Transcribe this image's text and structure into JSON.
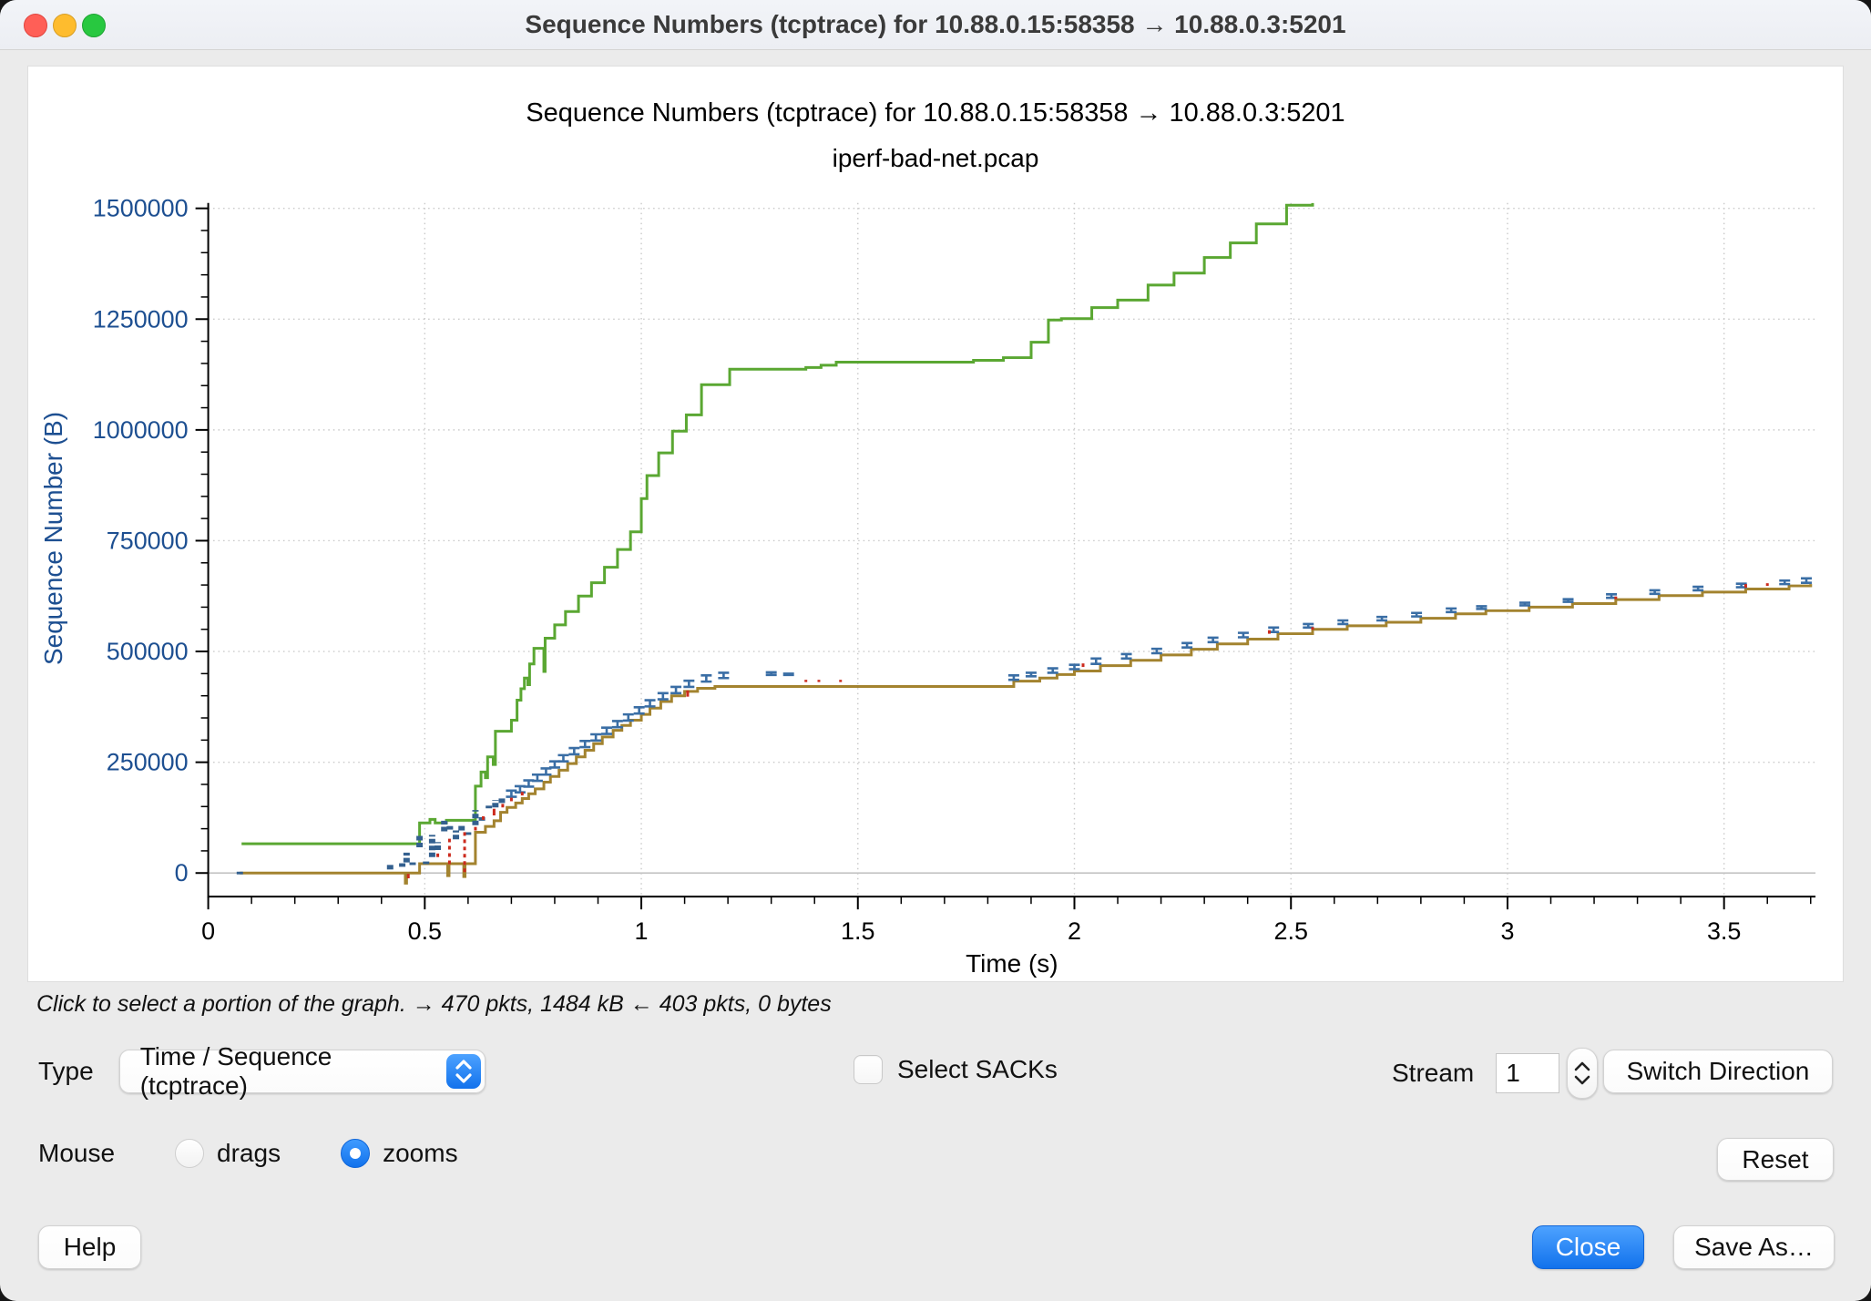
{
  "window": {
    "title": "Sequence Numbers (tcptrace) for 10.88.0.15:58358 → 10.88.0.3:5201"
  },
  "status_line": "Click to select a portion of the graph. → 470 pkts, 1484 kB ← 403 pkts, 0 bytes",
  "controls": {
    "type_label": "Type",
    "type_value": "Time / Sequence (tcptrace)",
    "sacks_label": "Select SACKs",
    "sacks_checked": false,
    "stream_label": "Stream",
    "stream_value": "1",
    "switch_direction_label": "Switch Direction",
    "mouse_label": "Mouse",
    "drags_label": "drags",
    "zooms_label": "zooms",
    "mouse_selected": "zooms",
    "reset_label": "Reset",
    "help_label": "Help",
    "close_label": "Close",
    "save_as_label": "Save As…"
  },
  "chart_data": {
    "type": "line",
    "title": "Sequence Numbers (tcptrace) for 10.88.0.15:58358 → 10.88.0.3:5201",
    "subtitle": "iperf-bad-net.pcap",
    "xlabel": "Time (s)",
    "ylabel": "Sequence Number (B)",
    "xlim": [
      0,
      3.7
    ],
    "ylim": [
      0,
      1512000
    ],
    "grid": true,
    "x_ticks": [
      0,
      0.5,
      1,
      1.5,
      2,
      2.5,
      3,
      3.5
    ],
    "x_tick_labels": [
      "0",
      "0.5",
      "1",
      "1.5",
      "2",
      "2.5",
      "3",
      "3.5"
    ],
    "x_minor_step": 0.1,
    "y_ticks": [
      0,
      250000,
      500000,
      750000,
      1000000,
      1250000,
      1500000
    ],
    "y_tick_labels": [
      "0",
      "250000",
      "500000",
      "750000",
      "1000000",
      "1250000",
      "1500000"
    ],
    "y_minor_step": 50000,
    "colors": {
      "rwnd_green": "#5aa732",
      "ack_brown": "#a3832f",
      "segment_blue": "#3a6ea5",
      "burst_blue": "#33608f",
      "sack_red": "#cc2a1d",
      "tick_label_blue": "#1d4f91",
      "grid_gray": "#c9c9c9",
      "zero_line_gray": "#b8b8b8"
    },
    "series": [
      {
        "name": "receive-window-green",
        "type": "step",
        "color": "#5aa732",
        "points": [
          [
            0.077,
            66000
          ],
          [
            0.488,
            113000
          ],
          [
            0.512,
            121000
          ],
          [
            0.524,
            113000
          ],
          [
            0.55,
            119000
          ],
          [
            0.617,
            196000
          ],
          [
            0.63,
            228000
          ],
          [
            0.64,
            215000
          ],
          [
            0.645,
            262000
          ],
          [
            0.658,
            245000
          ],
          [
            0.663,
            320000
          ],
          [
            0.7,
            345000
          ],
          [
            0.713,
            390000
          ],
          [
            0.722,
            416000
          ],
          [
            0.73,
            440000
          ],
          [
            0.738,
            425000
          ],
          [
            0.742,
            472000
          ],
          [
            0.752,
            507000
          ],
          [
            0.775,
            455000
          ],
          [
            0.778,
            530000
          ],
          [
            0.8,
            560000
          ],
          [
            0.825,
            590000
          ],
          [
            0.855,
            625000
          ],
          [
            0.885,
            655000
          ],
          [
            0.915,
            690000
          ],
          [
            0.945,
            730000
          ],
          [
            0.975,
            770000
          ],
          [
            1.0,
            845000
          ],
          [
            1.013,
            897000
          ],
          [
            1.04,
            948000
          ],
          [
            1.072,
            997000
          ],
          [
            1.104,
            1034000
          ],
          [
            1.139,
            1102000
          ],
          [
            1.204,
            1137000
          ],
          [
            1.38,
            1141000
          ],
          [
            1.415,
            1146000
          ],
          [
            1.45,
            1153000
          ],
          [
            1.767,
            1157000
          ],
          [
            1.836,
            1163000
          ],
          [
            1.9,
            1198000
          ],
          [
            1.94,
            1248000
          ],
          [
            1.97,
            1251000
          ],
          [
            2.04,
            1276000
          ],
          [
            2.1,
            1293000
          ],
          [
            2.17,
            1327000
          ],
          [
            2.23,
            1354000
          ],
          [
            2.3,
            1389000
          ],
          [
            2.36,
            1422000
          ],
          [
            2.42,
            1465000
          ],
          [
            2.49,
            1507000
          ],
          [
            2.55,
            1512000
          ]
        ]
      },
      {
        "name": "ack-line-brown",
        "type": "step",
        "color": "#a3832f",
        "points": [
          [
            0.073,
            0
          ],
          [
            0.455,
            -23000
          ],
          [
            0.458,
            0
          ],
          [
            0.488,
            21000
          ],
          [
            0.553,
            -6000
          ],
          [
            0.556,
            21000
          ],
          [
            0.59,
            -8000
          ],
          [
            0.593,
            21000
          ],
          [
            0.617,
            92000
          ],
          [
            0.64,
            105000
          ],
          [
            0.66,
            118000
          ],
          [
            0.675,
            137000
          ],
          [
            0.69,
            148000
          ],
          [
            0.71,
            158000
          ],
          [
            0.725,
            168000
          ],
          [
            0.74,
            179000
          ],
          [
            0.755,
            190000
          ],
          [
            0.775,
            205000
          ],
          [
            0.79,
            218000
          ],
          [
            0.81,
            232000
          ],
          [
            0.83,
            247000
          ],
          [
            0.85,
            262000
          ],
          [
            0.87,
            277000
          ],
          [
            0.89,
            292000
          ],
          [
            0.91,
            307000
          ],
          [
            0.935,
            322000
          ],
          [
            0.955,
            333000
          ],
          [
            0.975,
            345000
          ],
          [
            1.0,
            358000
          ],
          [
            1.02,
            372000
          ],
          [
            1.045,
            387000
          ],
          [
            1.07,
            400000
          ],
          [
            1.1,
            410000
          ],
          [
            1.13,
            417000
          ],
          [
            1.17,
            421000
          ],
          [
            1.86,
            433000
          ],
          [
            1.92,
            440000
          ],
          [
            1.96,
            448000
          ],
          [
            2.0,
            456000
          ],
          [
            2.06,
            468000
          ],
          [
            2.13,
            480000
          ],
          [
            2.2,
            492000
          ],
          [
            2.27,
            505000
          ],
          [
            2.33,
            517000
          ],
          [
            2.4,
            528000
          ],
          [
            2.47,
            540000
          ],
          [
            2.55,
            550000
          ],
          [
            2.63,
            558000
          ],
          [
            2.72,
            566000
          ],
          [
            2.8,
            575000
          ],
          [
            2.88,
            585000
          ],
          [
            2.95,
            592000
          ],
          [
            3.05,
            600000
          ],
          [
            3.15,
            608000
          ],
          [
            3.25,
            617000
          ],
          [
            3.35,
            626000
          ],
          [
            3.45,
            634000
          ],
          [
            3.55,
            641000
          ],
          [
            3.65,
            648000
          ],
          [
            3.7,
            652000
          ]
        ]
      },
      {
        "name": "segment-bursts-blue",
        "type": "thickbar",
        "color": "#33608f",
        "bars": [
          [
            0.073,
            -3000,
            3000
          ],
          [
            0.42,
            8000,
            20000
          ],
          [
            0.448,
            14000,
            22000
          ],
          [
            0.458,
            24000,
            46000
          ],
          [
            0.472,
            18000,
            24000
          ],
          [
            0.488,
            58000,
            88000
          ],
          [
            0.503,
            20000,
            26000
          ],
          [
            0.517,
            36000,
            86000
          ],
          [
            0.53,
            52000,
            70000
          ],
          [
            0.545,
            94000,
            118000
          ],
          [
            0.558,
            98000,
            106000
          ],
          [
            0.572,
            76000,
            96000
          ],
          [
            0.585,
            96000,
            108000
          ],
          [
            0.6,
            86000,
            92000
          ],
          [
            0.617,
            108000,
            142000
          ],
          [
            0.632,
            118000,
            126000
          ],
          [
            0.648,
            146000,
            152000
          ],
          [
            0.663,
            148000,
            165000
          ],
          [
            0.678,
            158000,
            170000
          ]
        ]
      },
      {
        "name": "data-segments-blue",
        "type": "ibar",
        "color": "#3a6ea5",
        "bars": [
          [
            0.7,
            172000,
            186000
          ],
          [
            0.72,
            182000,
            196000
          ],
          [
            0.74,
            195000,
            209000
          ],
          [
            0.76,
            208000,
            222000
          ],
          [
            0.78,
            222000,
            236000
          ],
          [
            0.8,
            238000,
            252000
          ],
          [
            0.82,
            252000,
            266000
          ],
          [
            0.845,
            268000,
            282000
          ],
          [
            0.87,
            284000,
            298000
          ],
          [
            0.895,
            299000,
            313000
          ],
          [
            0.92,
            314000,
            328000
          ],
          [
            0.945,
            329000,
            343000
          ],
          [
            0.97,
            344000,
            358000
          ],
          [
            0.995,
            360000,
            374000
          ],
          [
            1.02,
            376000,
            390000
          ],
          [
            1.05,
            392000,
            406000
          ],
          [
            1.08,
            406000,
            420000
          ],
          [
            1.11,
            420000,
            434000
          ],
          [
            1.15,
            432000,
            446000
          ],
          [
            1.19,
            440000,
            452000
          ],
          [
            1.3,
            447000,
            453000
          ],
          [
            1.34,
            447000,
            450000
          ],
          [
            1.86,
            436000,
            446000
          ],
          [
            1.9,
            444000,
            452000
          ],
          [
            1.95,
            452000,
            462000
          ],
          [
            2.0,
            460000,
            470000
          ],
          [
            2.05,
            472000,
            484000
          ],
          [
            2.12,
            484000,
            494000
          ],
          [
            2.19,
            496000,
            506000
          ],
          [
            2.26,
            509000,
            519000
          ],
          [
            2.32,
            521000,
            531000
          ],
          [
            2.39,
            532000,
            542000
          ],
          [
            2.46,
            544000,
            554000
          ],
          [
            2.54,
            554000,
            562000
          ],
          [
            2.62,
            562000,
            570000
          ],
          [
            2.71,
            570000,
            578000
          ],
          [
            2.79,
            579000,
            587000
          ],
          [
            2.87,
            589000,
            597000
          ],
          [
            2.94,
            596000,
            602000
          ],
          [
            3.04,
            604000,
            610000
          ],
          [
            3.14,
            612000,
            618000
          ],
          [
            3.24,
            621000,
            629000
          ],
          [
            3.34,
            630000,
            638000
          ],
          [
            3.44,
            638000,
            646000
          ],
          [
            3.54,
            645000,
            653000
          ],
          [
            3.64,
            652000,
            660000
          ],
          [
            3.69,
            655000,
            665000
          ]
        ]
      },
      {
        "name": "sack-retransmission-red",
        "type": "rtick",
        "color": "#cc2a1d",
        "bars": [
          [
            0.462,
            -12000,
            -2000
          ],
          [
            0.53,
            36000,
            44000
          ],
          [
            0.557,
            20000,
            85000
          ],
          [
            0.592,
            2000,
            100000
          ],
          [
            0.617,
            96000,
            104000
          ],
          [
            0.635,
            120000,
            128000
          ],
          [
            0.66,
            130000,
            145000
          ],
          [
            0.68,
            148000,
            156000
          ],
          [
            0.7,
            162000,
            170000
          ],
          [
            0.725,
            175000,
            183000
          ],
          [
            1.107,
            398000,
            412000
          ],
          [
            1.38,
            431000,
            436000
          ],
          [
            1.41,
            431000,
            436000
          ],
          [
            1.46,
            431000,
            436000
          ],
          [
            2.02,
            465000,
            473000
          ],
          [
            2.45,
            540000,
            548000
          ],
          [
            2.55,
            549000,
            555000
          ],
          [
            3.25,
            618000,
            624000
          ],
          [
            3.55,
            644000,
            652000
          ],
          [
            3.6,
            648000,
            654000
          ]
        ]
      }
    ]
  }
}
